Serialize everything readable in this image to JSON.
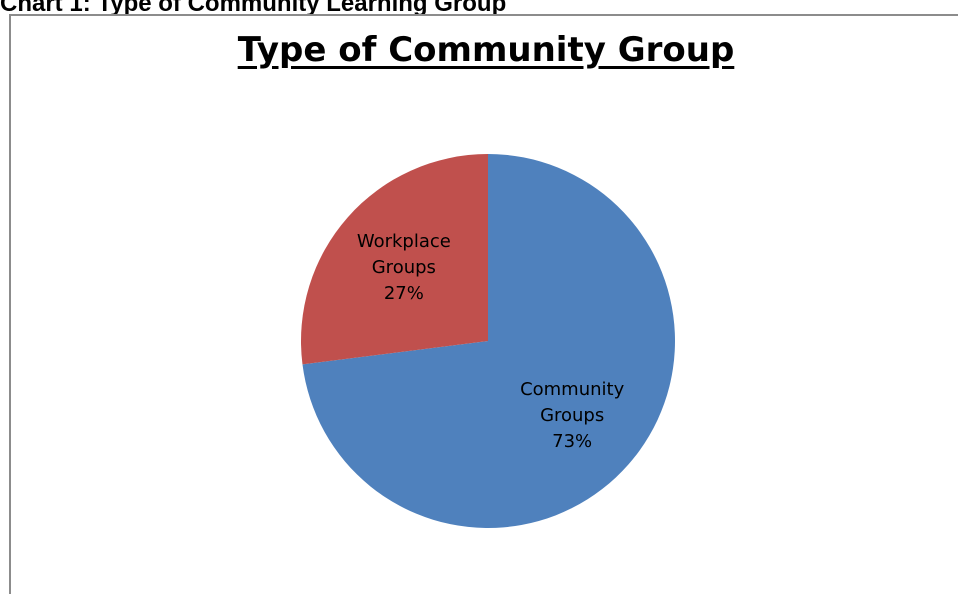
{
  "caption": "Chart 1: Type of Community Learning Group",
  "chart_data": {
    "type": "pie",
    "title": "Type of Community Group",
    "slices": [
      {
        "label_lines": [
          "Community",
          "Groups"
        ],
        "value": 73,
        "value_label": "73%",
        "color": "#4f81bd"
      },
      {
        "label_lines": [
          "Workplace",
          "Groups"
        ],
        "value": 27,
        "value_label": "27%",
        "color": "#c0504d"
      }
    ],
    "start_angle_deg": 0,
    "direction": "clockwise",
    "legend": "none",
    "data_labels": "inside"
  }
}
